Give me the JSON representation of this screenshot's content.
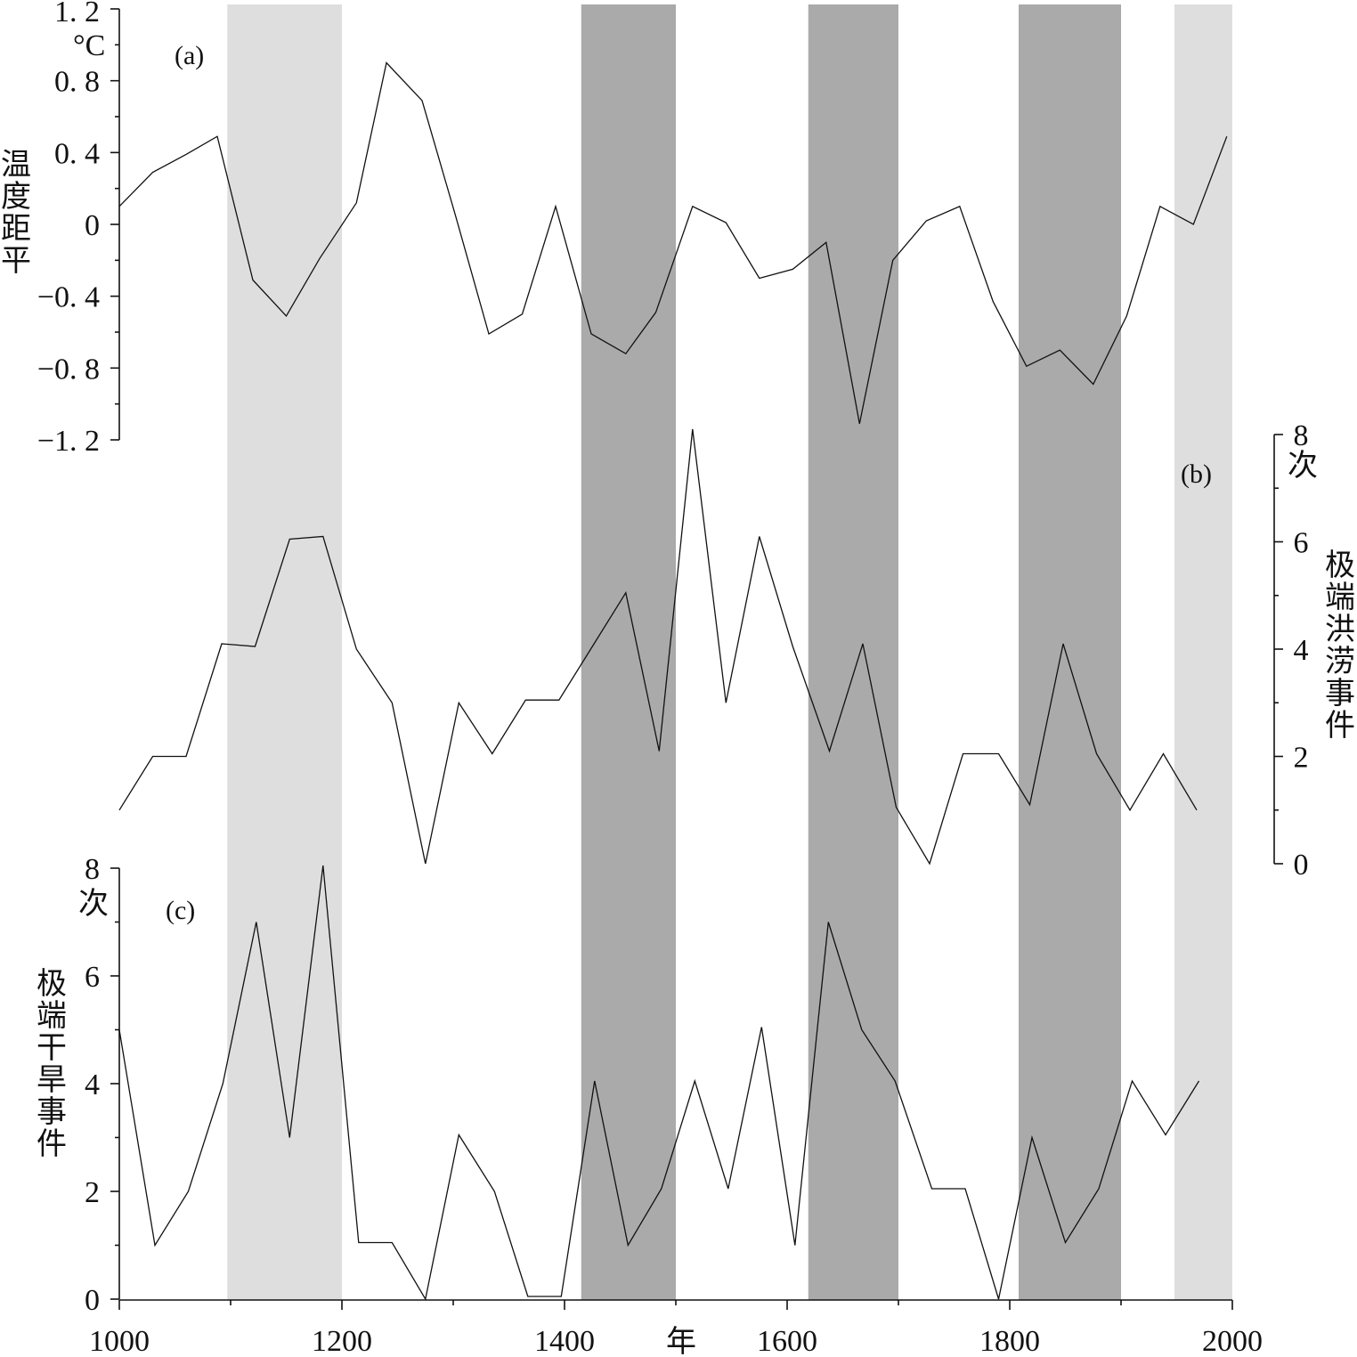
{
  "chart_data": {
    "type": "line",
    "xlabel": "年",
    "xlim": [
      1000,
      2000
    ],
    "x_ticks": [
      1000,
      1200,
      1400,
      1600,
      1800,
      2000
    ],
    "shaded_periods": [
      {
        "from": 1097,
        "to": 1200,
        "color": "#dedede"
      },
      {
        "from": 1415,
        "to": 1500,
        "color": "#aaaaaa"
      },
      {
        "from": 1619,
        "to": 1700,
        "color": "#aaaaaa"
      },
      {
        "from": 1808,
        "to": 1900,
        "color": "#aaaaaa"
      },
      {
        "from": 1948,
        "to": 2000,
        "color": "#dedede"
      }
    ],
    "panels": [
      {
        "id": "a",
        "label": "(a)",
        "ylabel": "温度距平",
        "unit": "°C",
        "ylim": [
          -1.2,
          1.2
        ],
        "y_ticks": [
          -1.2,
          -0.8,
          -0.4,
          0,
          0.4,
          0.8,
          1.2
        ],
        "y_tick_labels": [
          "-1.2",
          "-0.8",
          "-0.4",
          "0",
          "0.4",
          "0.8",
          "1.2"
        ],
        "axis_side": "left",
        "x": [
          1000,
          1030,
          1060,
          1088,
          1120,
          1150,
          1180,
          1213,
          1240,
          1272,
          1302,
          1332,
          1362,
          1392,
          1424,
          1455,
          1482,
          1515,
          1545,
          1575,
          1605,
          1635,
          1665,
          1695,
          1725,
          1755,
          1785,
          1815,
          1845,
          1875,
          1905,
          1935,
          1965,
          1995
        ],
        "values": [
          0.1,
          0.29,
          0.39,
          0.49,
          -0.31,
          -0.51,
          -0.19,
          0.12,
          0.9,
          0.69,
          0.05,
          -0.61,
          -0.5,
          0.1,
          -0.61,
          -0.72,
          -0.49,
          0.1,
          0.01,
          -0.3,
          -0.25,
          -0.1,
          -1.11,
          -0.2,
          0.02,
          0.1,
          -0.43,
          -0.79,
          -0.7,
          -0.89,
          -0.51,
          0.1,
          0.0,
          0.49
        ]
      },
      {
        "id": "b",
        "label": "(b)",
        "ylabel": "极端洪涝事件",
        "unit": "次",
        "ylim": [
          0,
          8
        ],
        "y_ticks": [
          0,
          2,
          4,
          6,
          8
        ],
        "y_tick_labels": [
          "0",
          "2",
          "4",
          "6",
          "8"
        ],
        "axis_side": "right",
        "x": [
          1000,
          1030,
          1060,
          1092,
          1122,
          1153,
          1183,
          1213,
          1245,
          1275,
          1305,
          1335,
          1365,
          1395,
          1425,
          1455,
          1485,
          1515,
          1545,
          1575,
          1605,
          1638,
          1668,
          1698,
          1728,
          1758,
          1790,
          1818,
          1848,
          1878,
          1908,
          1938,
          1968
        ],
        "values": [
          1,
          2,
          2,
          4.1,
          4.05,
          6.05,
          6.1,
          4,
          3,
          0,
          3,
          2.05,
          3.05,
          3.05,
          4.05,
          5.05,
          2.1,
          8.1,
          3,
          6.1,
          4.05,
          2.1,
          4.1,
          1.05,
          0,
          2.05,
          2.05,
          1.1,
          4.1,
          2.05,
          1,
          2.05,
          1
        ]
      },
      {
        "id": "c",
        "label": "(c)",
        "ylabel": "极端干旱事件",
        "unit": "次",
        "ylim": [
          0,
          8
        ],
        "y_ticks": [
          0,
          2,
          4,
          6,
          8
        ],
        "y_tick_labels": [
          "0",
          "2",
          "4",
          "6",
          "8"
        ],
        "axis_side": "left",
        "x": [
          1000,
          1032,
          1062,
          1093,
          1123,
          1153,
          1183,
          1215,
          1245,
          1275,
          1305,
          1337,
          1367,
          1397,
          1427,
          1457,
          1487,
          1517,
          1547,
          1577,
          1607,
          1637,
          1667,
          1697,
          1730,
          1760,
          1790,
          1820,
          1850,
          1880,
          1910,
          1940,
          1970
        ],
        "values": [
          5,
          1,
          2,
          4,
          7,
          3,
          8.05,
          1.05,
          1.05,
          0,
          3.05,
          2,
          0.05,
          0.05,
          4.05,
          1,
          2.05,
          4.05,
          2.05,
          5.05,
          1,
          7,
          5,
          4.05,
          2.05,
          2.05,
          0,
          3,
          1.05,
          2.05,
          4.05,
          3.05,
          4.05
        ]
      }
    ]
  }
}
